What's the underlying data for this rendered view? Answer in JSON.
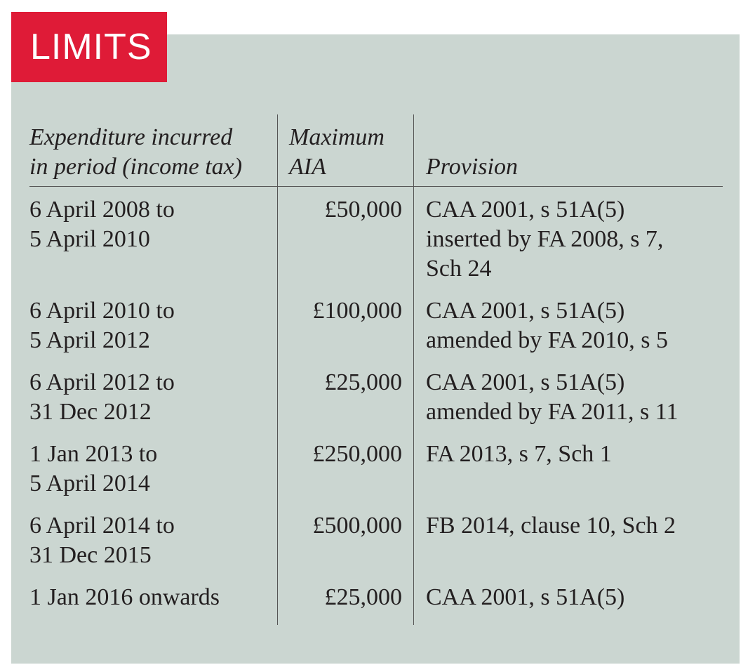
{
  "title": "LIMITS",
  "colors": {
    "badge": "#df1b37",
    "panel": "#cbd6d1"
  },
  "headers": [
    [
      "Expenditure incurred",
      "in period (income tax)"
    ],
    [
      "Maximum",
      "AIA"
    ],
    [
      "Provision"
    ]
  ],
  "rows": [
    {
      "period": [
        "6 April 2008 to",
        "5 April 2010"
      ],
      "aia": "£50,000",
      "provision": [
        "CAA 2001, s 51A(5)",
        "inserted by FA 2008, s 7,",
        "Sch 24"
      ]
    },
    {
      "period": [
        "6 April 2010 to",
        "5 April 2012"
      ],
      "aia": "£100,000",
      "provision": [
        "CAA 2001, s 51A(5)",
        "amended by FA 2010, s 5"
      ]
    },
    {
      "period": [
        "6 April 2012 to",
        "31 Dec 2012"
      ],
      "aia": "£25,000",
      "provision": [
        "CAA 2001, s 51A(5)",
        "amended by FA 2011, s 11"
      ]
    },
    {
      "period": [
        "1 Jan 2013 to",
        "5 April 2014"
      ],
      "aia": "£250,000",
      "provision": [
        "FA 2013, s 7, Sch 1"
      ]
    },
    {
      "period": [
        "6 April 2014 to",
        "31 Dec 2015"
      ],
      "aia": "£500,000",
      "provision": [
        "FB 2014, clause 10, Sch 2"
      ]
    },
    {
      "period": [
        "1 Jan 2016 onwards"
      ],
      "aia": "£25,000",
      "provision": [
        "CAA 2001, s 51A(5)"
      ]
    }
  ]
}
